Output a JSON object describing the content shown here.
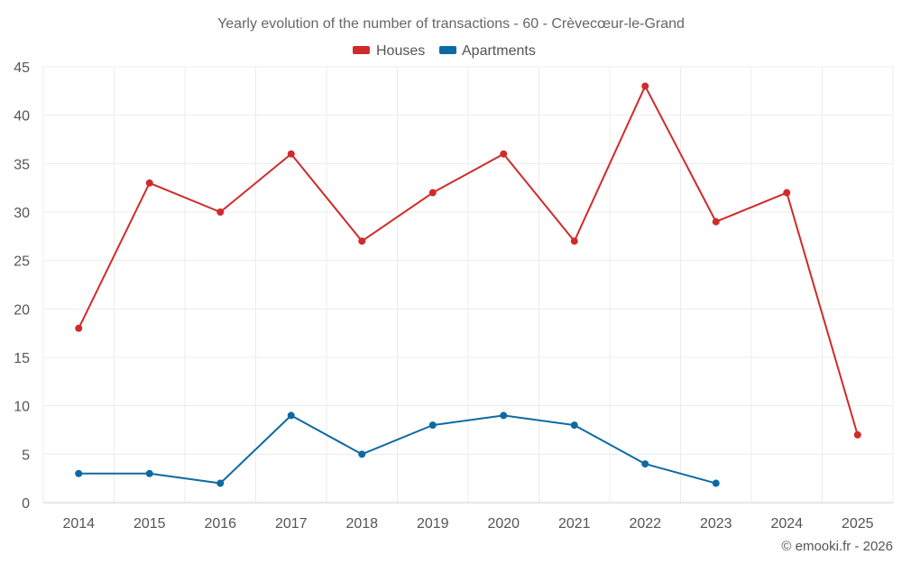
{
  "chart_data": {
    "type": "line",
    "title": "Yearly evolution of the number of transactions - 60 - Crèvecœur-le-Grand",
    "xlabel": "",
    "ylabel": "",
    "categories": [
      "2014",
      "2015",
      "2016",
      "2017",
      "2018",
      "2019",
      "2020",
      "2021",
      "2022",
      "2023",
      "2024",
      "2025"
    ],
    "ylim": [
      0,
      45
    ],
    "yticks": [
      0,
      5,
      10,
      15,
      20,
      25,
      30,
      35,
      40,
      45
    ],
    "grid": true,
    "legend_position": "top-center",
    "series": [
      {
        "name": "Houses",
        "color": "#d12a2a",
        "values": [
          18,
          33,
          30,
          36,
          27,
          32,
          36,
          27,
          43,
          29,
          32,
          7
        ]
      },
      {
        "name": "Apartments",
        "color": "#0c6aa3",
        "values": [
          3,
          3,
          2,
          9,
          5,
          8,
          9,
          8,
          4,
          2,
          null,
          null
        ]
      }
    ],
    "credit": "© emooki.fr - 2026"
  }
}
